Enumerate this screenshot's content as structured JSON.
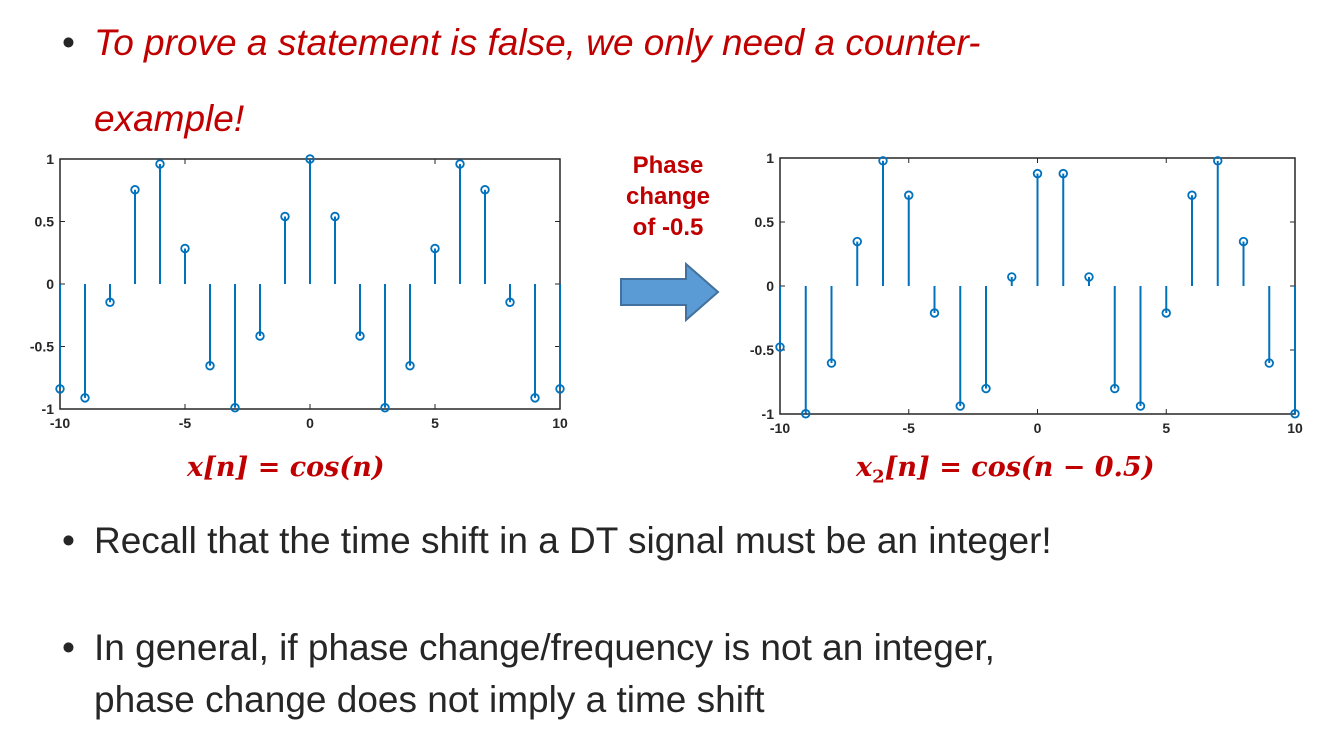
{
  "bullets": {
    "first_line1": "To prove a statement is false, we only need a counter-",
    "first_line2": "example!",
    "second": "Recall that the time shift in a DT signal must be an integer!",
    "third_line1": "In general, if phase change/frequency is not an integer,",
    "third_line2": "phase change does not imply a time shift"
  },
  "annotation": {
    "line1": "Phase",
    "line2": "change",
    "line3": "of -0.5"
  },
  "colors": {
    "stem": "#0072BD",
    "accent_red": "#C00000",
    "arrow_fill": "#5B9BD5",
    "arrow_stroke": "#41719C"
  },
  "chart_data": [
    {
      "type": "stem",
      "caption": "x[n] = cos(n)",
      "x": [
        -10,
        -9,
        -8,
        -7,
        -6,
        -5,
        -4,
        -3,
        -2,
        -1,
        0,
        1,
        2,
        3,
        4,
        5,
        6,
        7,
        8,
        9,
        10
      ],
      "values": [
        -0.839,
        -0.911,
        -0.146,
        0.754,
        0.96,
        0.284,
        -0.654,
        -0.99,
        -0.416,
        0.54,
        1.0,
        0.54,
        -0.416,
        -0.99,
        -0.654,
        0.284,
        0.96,
        0.754,
        -0.146,
        -0.911,
        -0.839
      ],
      "xlim": [
        -10,
        10
      ],
      "ylim": [
        -1,
        1
      ],
      "xticks": [
        "-10",
        "-5",
        "0",
        "5",
        "10"
      ],
      "yticks": [
        "1",
        "0.5",
        "0",
        "-0.5",
        "-1"
      ]
    },
    {
      "type": "stem",
      "caption": "x2[n] = cos(n − 0.5)",
      "x": [
        -10,
        -9,
        -8,
        -7,
        -6,
        -5,
        -4,
        -3,
        -2,
        -1,
        0,
        1,
        2,
        3,
        4,
        5,
        6,
        7,
        8,
        9,
        10
      ],
      "values": [
        -0.477,
        -0.998,
        -0.602,
        0.347,
        0.978,
        0.709,
        -0.211,
        -0.938,
        -0.801,
        0.071,
        0.878,
        0.878,
        0.071,
        -0.801,
        -0.938,
        -0.211,
        0.709,
        0.978,
        0.347,
        -0.602,
        -0.998
      ],
      "xlim": [
        -10,
        10
      ],
      "ylim": [
        -1,
        1
      ],
      "xticks": [
        "-10",
        "-5",
        "0",
        "5",
        "10"
      ],
      "yticks": [
        "1",
        "0.5",
        "0",
        "-0.5",
        "-1"
      ]
    }
  ],
  "formulas": {
    "left_lhs": "x[n]",
    "left_rhs": "cos(n)",
    "right_base": "x",
    "right_sub": "2",
    "right_arg": "[n]",
    "right_rhs": "cos(n − 0.5)",
    "equals": "="
  }
}
